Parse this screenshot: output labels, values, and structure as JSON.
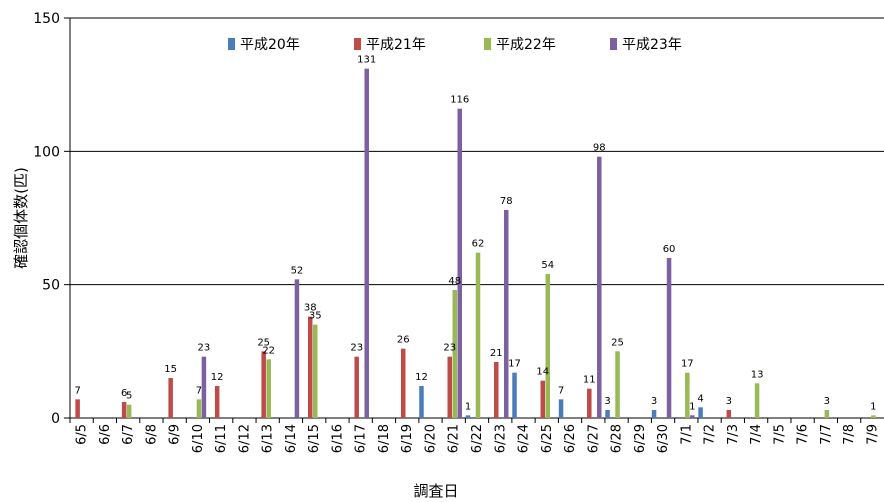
{
  "chart_data": {
    "type": "bar",
    "xlabel": "調査日",
    "ylabel": "確認個体数(匹)",
    "ylim": [
      0,
      150
    ],
    "yticks": [
      0,
      50,
      100,
      150
    ],
    "grid": true,
    "legend_position": "top",
    "categories": [
      "6/5",
      "6/6",
      "6/7",
      "6/8",
      "6/9",
      "6/10",
      "6/11",
      "6/12",
      "6/13",
      "6/14",
      "6/15",
      "6/16",
      "6/17",
      "6/18",
      "6/19",
      "6/20",
      "6/21",
      "6/22",
      "6/23",
      "6/24",
      "6/25",
      "6/26",
      "6/27",
      "6/28",
      "6/29",
      "6/30",
      "7/1",
      "7/2",
      "7/3",
      "7/4",
      "7/5",
      "7/6",
      "7/7",
      "7/8",
      "7/9"
    ],
    "series": [
      {
        "name": "平成20年",
        "color": "#4a7ebb",
        "values": [
          null,
          null,
          null,
          null,
          null,
          null,
          null,
          null,
          null,
          null,
          null,
          null,
          null,
          null,
          null,
          12,
          null,
          1,
          null,
          17,
          null,
          7,
          null,
          3,
          null,
          3,
          null,
          4,
          null,
          null,
          null,
          null,
          null,
          null,
          null
        ]
      },
      {
        "name": "平成21年",
        "color": "#be4b48",
        "values": [
          7,
          null,
          6,
          null,
          15,
          null,
          12,
          null,
          25,
          null,
          38,
          null,
          23,
          null,
          26,
          null,
          23,
          null,
          21,
          null,
          14,
          null,
          11,
          null,
          null,
          null,
          null,
          null,
          3,
          null,
          null,
          null,
          null,
          null,
          null
        ]
      },
      {
        "name": "平成22年",
        "color": "#98b954",
        "values": [
          null,
          null,
          5,
          null,
          null,
          7,
          null,
          null,
          22,
          null,
          35,
          null,
          null,
          null,
          null,
          null,
          48,
          62,
          null,
          null,
          54,
          null,
          null,
          25,
          null,
          null,
          17,
          null,
          null,
          13,
          null,
          null,
          3,
          null,
          1
        ]
      },
      {
        "name": "平成23年",
        "color": "#7d60a0",
        "values": [
          null,
          null,
          null,
          null,
          null,
          23,
          null,
          null,
          null,
          52,
          null,
          null,
          131,
          null,
          null,
          null,
          116,
          null,
          78,
          null,
          null,
          null,
          98,
          null,
          null,
          60,
          1,
          null,
          null,
          null,
          null,
          null,
          null,
          null,
          null
        ]
      }
    ],
    "data_labels": [
      {
        "category": "6/5",
        "series": "平成21年",
        "text": "7"
      },
      {
        "category": "6/7",
        "series": "平成21年",
        "text": "6"
      },
      {
        "category": "6/7",
        "series": "平成22年",
        "text": "5"
      },
      {
        "category": "6/9",
        "series": "平成21年",
        "text": "15"
      },
      {
        "category": "6/10",
        "series": "平成22年",
        "text": "7"
      },
      {
        "category": "6/10",
        "series": "平成23年",
        "text": "23"
      },
      {
        "category": "6/11",
        "series": "平成21年",
        "text": "12"
      },
      {
        "category": "6/13",
        "series": "平成21年",
        "text": "25"
      },
      {
        "category": "6/13",
        "series": "平成22年",
        "text": "22"
      },
      {
        "category": "6/14",
        "series": "平成23年",
        "text": "52"
      },
      {
        "category": "6/15",
        "series": "平成21年",
        "text": "38"
      },
      {
        "category": "6/15",
        "series": "平成22年",
        "text": "35"
      },
      {
        "category": "6/17",
        "series": "平成21年",
        "text": "23"
      },
      {
        "category": "6/17",
        "series": "平成23年",
        "text": "131"
      },
      {
        "category": "6/19",
        "series": "平成21年",
        "text": "26"
      },
      {
        "category": "6/20",
        "series": "平成20年",
        "text": "12"
      },
      {
        "category": "6/21",
        "series": "平成21年",
        "text": "23"
      },
      {
        "category": "6/21",
        "series": "平成22年",
        "text": "48"
      },
      {
        "category": "6/21",
        "series": "平成23年",
        "text": "116"
      },
      {
        "category": "6/22",
        "series": "平成20年",
        "text": "1"
      },
      {
        "category": "6/22",
        "series": "平成22年",
        "text": "62"
      },
      {
        "category": "6/23",
        "series": "平成21年",
        "text": "21"
      },
      {
        "category": "6/23",
        "series": "平成23年",
        "text": "78"
      },
      {
        "category": "6/24",
        "series": "平成20年",
        "text": "17"
      },
      {
        "category": "6/25",
        "series": "平成21年",
        "text": "14"
      },
      {
        "category": "6/25",
        "series": "平成22年",
        "text": "54"
      },
      {
        "category": "6/26",
        "series": "平成20年",
        "text": "7"
      },
      {
        "category": "6/27",
        "series": "平成21年",
        "text": "11"
      },
      {
        "category": "6/27",
        "series": "平成23年",
        "text": "98"
      },
      {
        "category": "6/28",
        "series": "平成20年",
        "text": "3"
      },
      {
        "category": "6/28",
        "series": "平成22年",
        "text": "25"
      },
      {
        "category": "6/30",
        "series": "平成20年",
        "text": "3"
      },
      {
        "category": "6/30",
        "series": "平成23年",
        "text": "60"
      },
      {
        "category": "7/1",
        "series": "平成23年",
        "text": "1"
      },
      {
        "category": "7/1",
        "series": "平成22年",
        "text": "17"
      },
      {
        "category": "7/2",
        "series": "平成20年",
        "text": "4"
      },
      {
        "category": "7/3",
        "series": "平成21年",
        "text": "3"
      },
      {
        "category": "7/4",
        "series": "平成22年",
        "text": "13"
      },
      {
        "category": "7/7",
        "series": "平成22年",
        "text": "3"
      },
      {
        "category": "7/9",
        "series": "平成22年",
        "text": "1"
      }
    ]
  }
}
